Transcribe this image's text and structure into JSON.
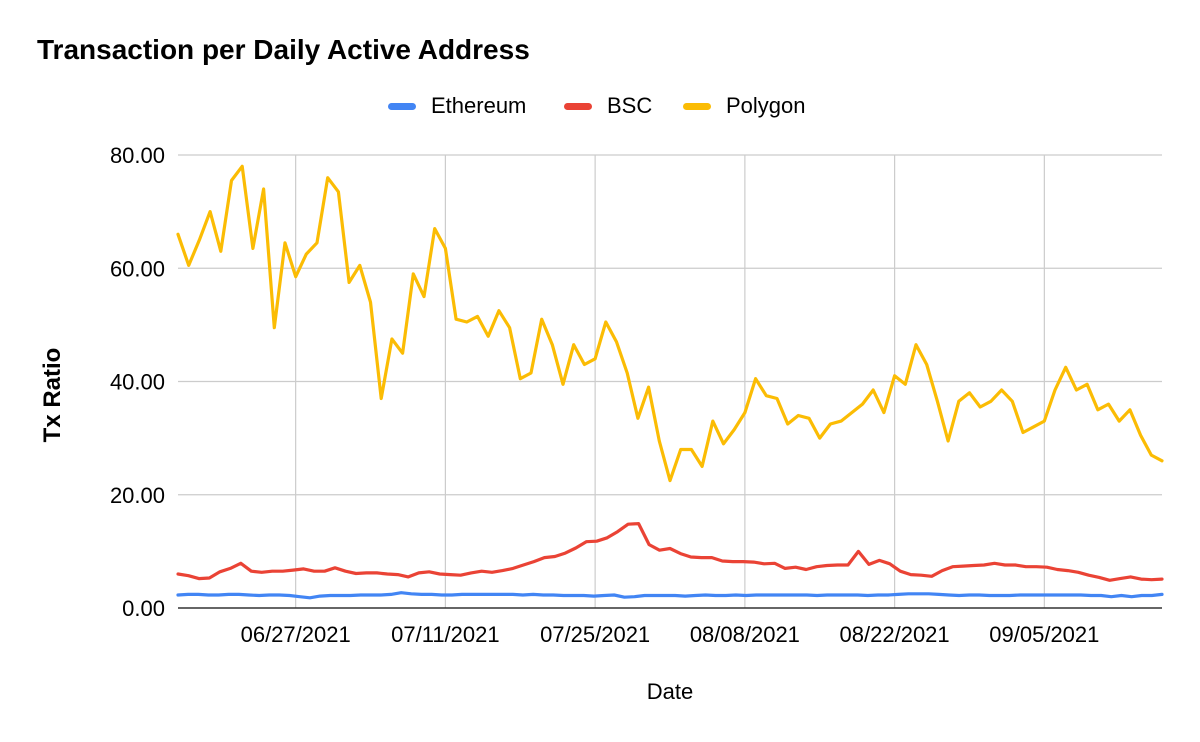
{
  "chart_data": {
    "type": "line",
    "title": "Transaction per Daily Active Address",
    "xlabel": "Date",
    "ylabel": "Tx Ratio",
    "ylim": [
      0,
      80
    ],
    "yticks": [
      "0.00",
      "20.00",
      "40.00",
      "60.00",
      "80.00"
    ],
    "x_start": "2021-06-16",
    "x_end": "2021-09-16",
    "xticks": [
      {
        "date": "2021-06-27",
        "label": "06/27/2021"
      },
      {
        "date": "2021-07-11",
        "label": "07/11/2021"
      },
      {
        "date": "2021-07-25",
        "label": "07/25/2021"
      },
      {
        "date": "2021-08-08",
        "label": "08/08/2021"
      },
      {
        "date": "2021-08-22",
        "label": "08/22/2021"
      },
      {
        "date": "2021-09-05",
        "label": "09/05/2021"
      }
    ],
    "grid": true,
    "legend_position": "top",
    "series": [
      {
        "name": "Ethereum",
        "color": "#4285f4",
        "values": [
          2.3,
          2.4,
          2.4,
          2.3,
          2.3,
          2.4,
          2.4,
          2.3,
          2.2,
          2.3,
          2.3,
          2.2,
          2.0,
          1.8,
          2.1,
          2.2,
          2.2,
          2.2,
          2.3,
          2.3,
          2.3,
          2.4,
          2.7,
          2.5,
          2.4,
          2.4,
          2.3,
          2.3,
          2.4,
          2.4,
          2.4,
          2.4,
          2.4,
          2.4,
          2.3,
          2.4,
          2.3,
          2.3,
          2.2,
          2.2,
          2.2,
          2.1,
          2.2,
          2.3,
          1.9,
          2.0,
          2.2,
          2.2,
          2.2,
          2.2,
          2.1,
          2.2,
          2.3,
          2.2,
          2.2,
          2.3,
          2.2,
          2.3,
          2.3,
          2.3,
          2.3,
          2.3,
          2.3,
          2.2,
          2.3,
          2.3,
          2.3,
          2.3,
          2.2,
          2.3,
          2.3,
          2.4,
          2.5,
          2.5,
          2.5,
          2.4,
          2.3,
          2.2,
          2.3,
          2.3,
          2.2,
          2.2,
          2.2,
          2.3,
          2.3,
          2.3,
          2.3,
          2.3,
          2.3,
          2.3,
          2.2,
          2.2,
          2.0,
          2.2,
          2.0,
          2.2,
          2.2,
          2.4
        ]
      },
      {
        "name": "BSC",
        "color": "#ea4335",
        "values": [
          6.0,
          5.7,
          5.2,
          5.3,
          6.4,
          7.0,
          7.9,
          6.5,
          6.3,
          6.5,
          6.5,
          6.7,
          6.9,
          6.5,
          6.5,
          7.1,
          6.5,
          6.1,
          6.2,
          6.2,
          6.0,
          5.9,
          5.5,
          6.2,
          6.4,
          6.0,
          5.9,
          5.8,
          6.2,
          6.5,
          6.3,
          6.6,
          7.0,
          7.6,
          8.2,
          8.9,
          9.1,
          9.7,
          10.6,
          11.7,
          11.8,
          12.4,
          13.5,
          14.8,
          14.9,
          11.2,
          10.2,
          10.5,
          9.6,
          9.0,
          8.9,
          8.9,
          8.3,
          8.2,
          8.2,
          8.1,
          7.8,
          7.9,
          7.0,
          7.2,
          6.8,
          7.3,
          7.5,
          7.6,
          7.6,
          10.0,
          7.7,
          8.4,
          7.8,
          6.5,
          5.9,
          5.8,
          5.6,
          6.6,
          7.3,
          7.4,
          7.5,
          7.6,
          7.9,
          7.6,
          7.6,
          7.3,
          7.3,
          7.2,
          6.8,
          6.6,
          6.3,
          5.8,
          5.4,
          4.9,
          5.2,
          5.5,
          5.1,
          5.0,
          5.1
        ]
      },
      {
        "name": "Polygon",
        "color": "#fbbc04",
        "values": [
          66,
          60.5,
          65,
          70,
          63,
          75.5,
          78,
          63.5,
          74,
          49.5,
          64.5,
          58.5,
          62.5,
          64.5,
          76,
          73.5,
          57.5,
          60.5,
          54,
          37,
          47.5,
          45,
          59,
          55,
          67,
          63.5,
          51,
          50.5,
          51.5,
          48,
          52.5,
          49.5,
          40.5,
          41.5,
          51,
          46.5,
          39.5,
          46.5,
          43,
          44,
          50.5,
          47,
          41.5,
          33.5,
          39,
          29.5,
          22.5,
          28,
          28,
          25,
          33,
          29,
          31.5,
          34.5,
          40.5,
          37.5,
          37,
          32.5,
          34,
          33.5,
          30,
          32.5,
          33,
          34.5,
          36,
          38.5,
          34.5,
          41,
          39.5,
          46.5,
          43,
          36.5,
          29.5,
          36.5,
          38,
          35.5,
          36.5,
          38.5,
          36.5,
          31,
          32,
          33,
          38.5,
          42.5,
          38.5,
          39.5,
          35,
          36,
          33,
          35,
          30.5,
          27,
          26
        ]
      }
    ]
  }
}
